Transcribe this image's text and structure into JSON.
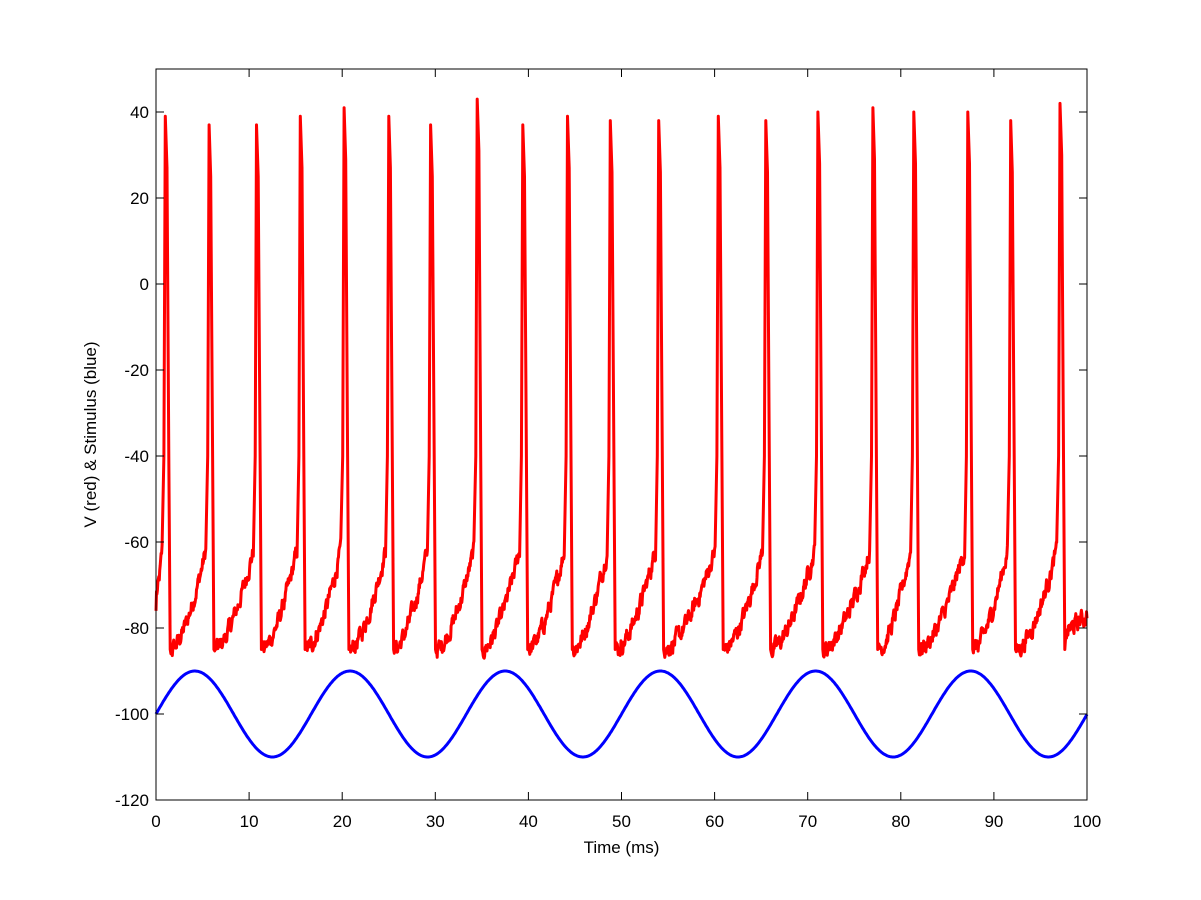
{
  "chart_data": {
    "type": "line",
    "title": "",
    "xlabel": "Time (ms)",
    "ylabel": "V (red) & Stimulus (blue)",
    "xlim": [
      0,
      100
    ],
    "ylim": [
      -120,
      50
    ],
    "xticks": [
      0,
      10,
      20,
      30,
      40,
      50,
      60,
      70,
      80,
      90,
      100
    ],
    "yticks": [
      -120,
      -100,
      -80,
      -60,
      -40,
      -20,
      0,
      20,
      40
    ],
    "xtick_labels": [
      "0",
      "10",
      "20",
      "30",
      "40",
      "50",
      "60",
      "70",
      "80",
      "90",
      "100"
    ],
    "ytick_labels": [
      "-120",
      "-100",
      "-80",
      "-60",
      "-40",
      "-20",
      "0",
      "20",
      "40"
    ],
    "grid": false,
    "box": true,
    "series": [
      {
        "color": "#ff0000",
        "spike_times_ms": [
          1.0,
          5.7,
          10.8,
          15.5,
          20.2,
          25.0,
          29.5,
          34.5,
          39.4,
          44.2,
          48.8,
          54.0,
          60.4,
          65.5,
          71.1,
          77.0,
          81.4,
          87.2,
          91.8,
          97.1
        ],
        "spike_peaks_mV": [
          39,
          37,
          37,
          39,
          41,
          39,
          37,
          43,
          37,
          39,
          38,
          38,
          39,
          38,
          40,
          41,
          40,
          40,
          38,
          42
        ],
        "resting_mV": -80,
        "trough_mV": -85
      },
      {
        "color": "#0000ff",
        "waveform": "sine",
        "offset": -100,
        "amplitude": 10,
        "period_ms": 16.67,
        "phase_start_value": -100
      }
    ]
  }
}
